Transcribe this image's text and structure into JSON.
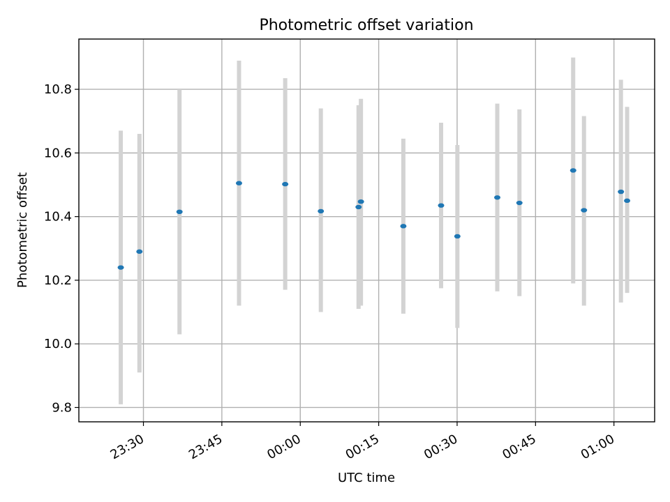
{
  "chart_data": {
    "type": "scatter",
    "title": "Photometric offset variation",
    "xlabel": "UTC time",
    "ylabel": "Photometric offset",
    "grid": true,
    "xlim": [
      "23:17:39",
      "01:07:47"
    ],
    "ylim": [
      9.755,
      10.958
    ],
    "yticks": [
      9.8,
      10.0,
      10.2,
      10.4,
      10.6,
      10.8
    ],
    "xticks": [
      "23:30",
      "23:45",
      "00:00",
      "00:15",
      "00:30",
      "00:45",
      "01:00"
    ],
    "colors": {
      "point": "#1f77b4",
      "errorbar": "#d3d3d3"
    },
    "points": [
      {
        "x": "23:25:40",
        "y": 10.24,
        "ylow": 9.81,
        "yhigh": 10.67
      },
      {
        "x": "23:29:14",
        "y": 10.29,
        "ylow": 9.91,
        "yhigh": 10.66
      },
      {
        "x": "23:36:54",
        "y": 10.415,
        "ylow": 10.03,
        "yhigh": 10.8
      },
      {
        "x": "23:48:17",
        "y": 10.505,
        "ylow": 10.12,
        "yhigh": 10.89
      },
      {
        "x": "23:57:07",
        "y": 10.502,
        "ylow": 10.17,
        "yhigh": 10.835
      },
      {
        "x": "00:03:56",
        "y": 10.417,
        "ylow": 10.1,
        "yhigh": 10.74
      },
      {
        "x": "00:11:09",
        "y": 10.43,
        "ylow": 10.11,
        "yhigh": 10.75
      },
      {
        "x": "00:11:36",
        "y": 10.447,
        "ylow": 10.12,
        "yhigh": 10.77
      },
      {
        "x": "00:19:43",
        "y": 10.37,
        "ylow": 10.095,
        "yhigh": 10.645
      },
      {
        "x": "00:26:56",
        "y": 10.435,
        "ylow": 10.175,
        "yhigh": 10.695
      },
      {
        "x": "00:30:03",
        "y": 10.338,
        "ylow": 10.05,
        "yhigh": 10.625
      },
      {
        "x": "00:37:41",
        "y": 10.46,
        "ylow": 10.165,
        "yhigh": 10.755
      },
      {
        "x": "00:41:55",
        "y": 10.443,
        "ylow": 10.15,
        "yhigh": 10.737
      },
      {
        "x": "00:52:12",
        "y": 10.545,
        "ylow": 10.19,
        "yhigh": 10.9
      },
      {
        "x": "00:54:16",
        "y": 10.42,
        "ylow": 10.12,
        "yhigh": 10.716
      },
      {
        "x": "01:01:20",
        "y": 10.478,
        "ylow": 10.13,
        "yhigh": 10.83
      },
      {
        "x": "01:02:31",
        "y": 10.45,
        "ylow": 10.16,
        "yhigh": 10.745
      }
    ]
  }
}
